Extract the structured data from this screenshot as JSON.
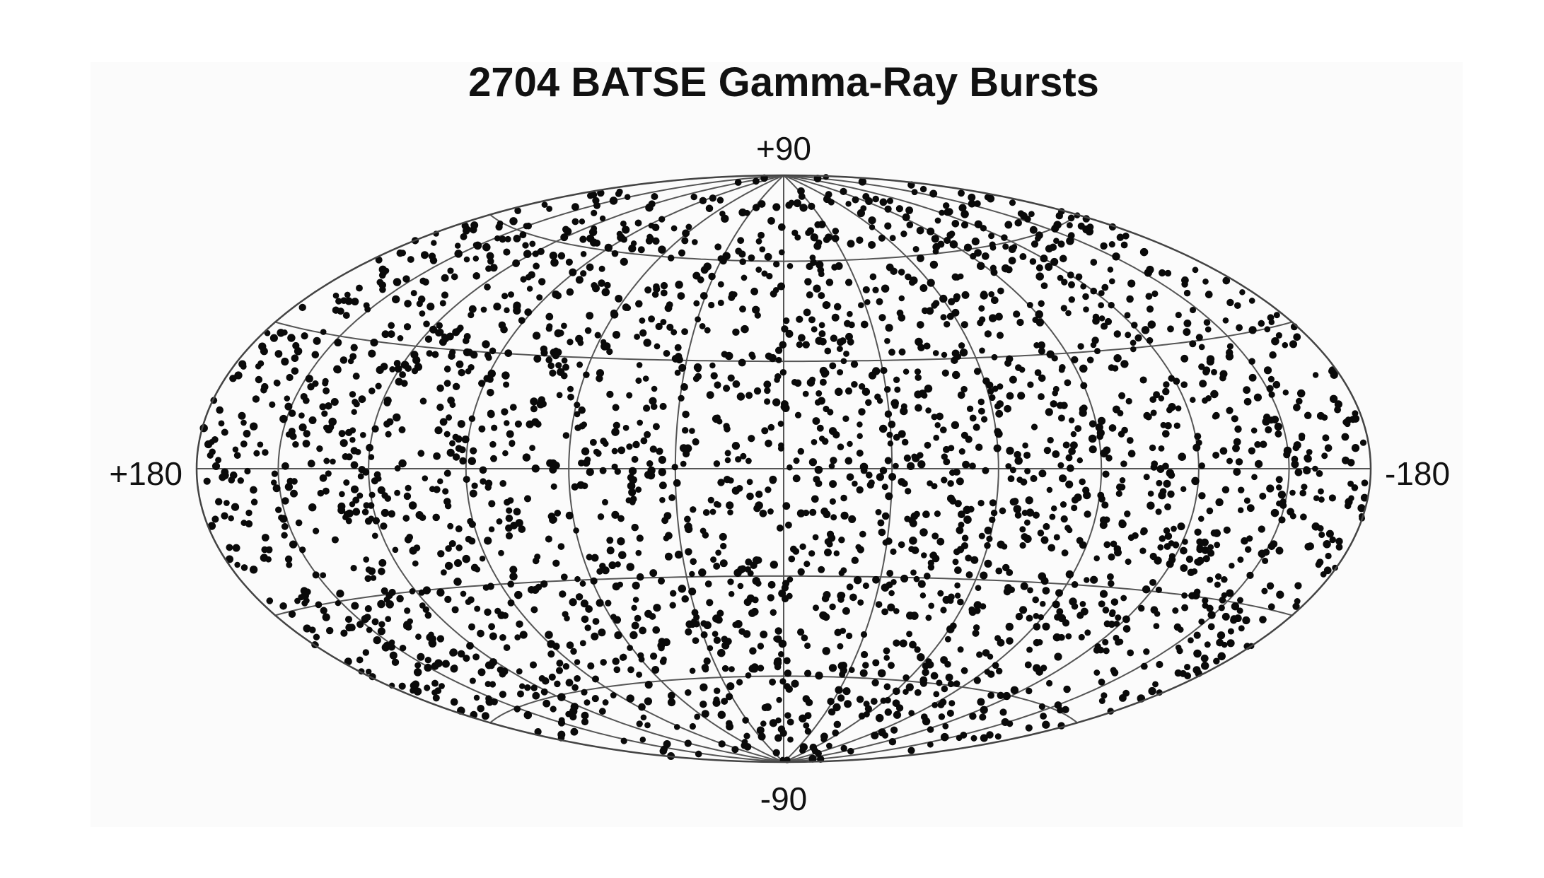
{
  "chart_data": {
    "type": "scatter",
    "projection": "hammer-aitoff",
    "coordinates": "galactic",
    "title": "2704 BATSE Gamma-Ray Bursts",
    "count": 2704,
    "distribution": "isotropic",
    "longitude_range": [
      180,
      -180
    ],
    "latitude_range": [
      -90,
      90
    ],
    "tick_labels": {
      "top": "+90",
      "bottom": "-90",
      "left": "+180",
      "right": "-180"
    },
    "meridians_deg": [
      -180,
      -150,
      -120,
      -90,
      -60,
      -30,
      0,
      30,
      60,
      90,
      120,
      150,
      180
    ],
    "parallels_deg": [
      -60,
      -30,
      0,
      30,
      60
    ],
    "grid": true,
    "legend": "none",
    "colors": {
      "points": "#0a0a0a",
      "grid": "#555555",
      "panel": "#fbfbfb"
    }
  }
}
